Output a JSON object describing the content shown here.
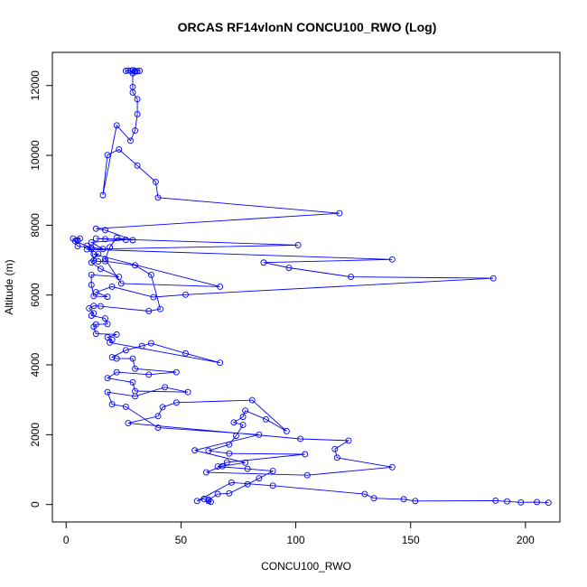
{
  "chart_data": {
    "type": "line",
    "title": "ORCAS RF14vlonN CONCU100_RWO (Log)",
    "xlabel": "CONCU100_RWO",
    "ylabel": "Altitude (m)",
    "xlim": [
      -6,
      215
    ],
    "ylim": [
      -500,
      12950
    ],
    "xticks": [
      0,
      50,
      100,
      150,
      200
    ],
    "yticks": [
      0,
      2000,
      4000,
      6000,
      8000,
      10000,
      12000
    ],
    "grid": false,
    "marker": "open-circle",
    "color": "#0000ff",
    "series": [
      {
        "name": "",
        "points": [
          [
            210,
            50
          ],
          [
            205,
            70
          ],
          [
            198,
            60
          ],
          [
            192,
            90
          ],
          [
            187,
            110
          ],
          [
            152,
            100
          ],
          [
            147,
            150
          ],
          [
            134,
            180
          ],
          [
            130,
            300
          ],
          [
            90,
            540
          ],
          [
            72,
            630
          ],
          [
            57,
            100
          ],
          [
            60,
            160
          ],
          [
            62,
            100
          ],
          [
            63,
            80
          ],
          [
            62,
            140
          ],
          [
            66,
            300
          ],
          [
            71,
            320
          ],
          [
            79,
            580
          ],
          [
            84,
            750
          ],
          [
            90,
            960
          ],
          [
            79,
            1020
          ],
          [
            66,
            1090
          ],
          [
            70,
            1210
          ],
          [
            104,
            1440
          ],
          [
            71,
            1460
          ],
          [
            62,
            1540
          ],
          [
            71,
            1720
          ],
          [
            74,
            1970
          ],
          [
            77,
            2280
          ],
          [
            73,
            2350
          ],
          [
            77,
            2510
          ],
          [
            78,
            2690
          ],
          [
            87,
            2440
          ],
          [
            96,
            2100
          ],
          [
            81,
            2990
          ],
          [
            48,
            2920
          ],
          [
            42,
            2790
          ],
          [
            40,
            2530
          ],
          [
            27,
            2330
          ],
          [
            102,
            1880
          ],
          [
            123,
            1830
          ],
          [
            117,
            1590
          ],
          [
            118,
            1340
          ],
          [
            142,
            1070
          ],
          [
            105,
            840
          ],
          [
            61,
            920
          ],
          [
            68,
            1100
          ],
          [
            78,
            1200
          ],
          [
            56,
            1550
          ],
          [
            84,
            2000
          ],
          [
            40,
            2200
          ],
          [
            26,
            2800
          ],
          [
            20,
            2870
          ],
          [
            18,
            3220
          ],
          [
            30,
            3100
          ],
          [
            43,
            3360
          ],
          [
            53,
            3220
          ],
          [
            30,
            3250
          ],
          [
            29,
            3500
          ],
          [
            18,
            3620
          ],
          [
            22,
            3790
          ],
          [
            36,
            3720
          ],
          [
            48,
            3790
          ],
          [
            30,
            3890
          ],
          [
            29,
            4180
          ],
          [
            22,
            4180
          ],
          [
            20,
            4220
          ],
          [
            26,
            4420
          ],
          [
            33,
            4540
          ],
          [
            37,
            4620
          ],
          [
            52,
            4330
          ],
          [
            67,
            4060
          ],
          [
            19,
            4640
          ],
          [
            20,
            4720
          ],
          [
            18,
            4790
          ],
          [
            22,
            4870
          ],
          [
            13,
            4890
          ],
          [
            12,
            5090
          ],
          [
            13,
            5160
          ],
          [
            18,
            5170
          ],
          [
            17,
            5330
          ],
          [
            11,
            5410
          ],
          [
            12,
            5480
          ],
          [
            10,
            5620
          ],
          [
            12,
            5690
          ],
          [
            15,
            5680
          ],
          [
            36,
            5540
          ],
          [
            41,
            5600
          ],
          [
            37,
            6580
          ],
          [
            30,
            6850
          ],
          [
            17,
            6970
          ],
          [
            14,
            6960
          ],
          [
            12,
            6990
          ],
          [
            11,
            7320
          ],
          [
            9,
            7410
          ],
          [
            4,
            7540
          ],
          [
            5,
            7570
          ],
          [
            6,
            7620
          ],
          [
            3,
            7620
          ],
          [
            5,
            7400
          ],
          [
            11,
            7360
          ],
          [
            16,
            7320
          ],
          [
            11,
            7510
          ],
          [
            26,
            7580
          ],
          [
            17,
            7600
          ],
          [
            13,
            7620
          ],
          [
            101,
            7430
          ],
          [
            9,
            7310
          ],
          [
            142,
            7020
          ],
          [
            86,
            6930
          ],
          [
            97,
            6780
          ],
          [
            124,
            6520
          ],
          [
            186,
            6480
          ],
          [
            52,
            6010
          ],
          [
            38,
            5940
          ],
          [
            20,
            6240
          ],
          [
            13,
            6080
          ],
          [
            18,
            5950
          ],
          [
            12,
            5970
          ],
          [
            11,
            6290
          ],
          [
            11,
            6580
          ],
          [
            23,
            6520
          ],
          [
            15,
            6750
          ],
          [
            11,
            6930
          ],
          [
            14,
            7180
          ],
          [
            12,
            7170
          ],
          [
            67,
            6240
          ],
          [
            24,
            6330
          ],
          [
            17,
            7030
          ],
          [
            19,
            7370
          ],
          [
            22,
            7640
          ],
          [
            29,
            7570
          ],
          [
            17,
            7860
          ],
          [
            13,
            7900
          ],
          [
            119,
            8340
          ],
          [
            40,
            8790
          ],
          [
            39,
            9240
          ],
          [
            31,
            9710
          ],
          [
            23,
            10170
          ],
          [
            18,
            10010
          ],
          [
            16,
            8860
          ],
          [
            22,
            10860
          ],
          [
            28,
            10420
          ],
          [
            30,
            10710
          ],
          [
            31,
            11180
          ],
          [
            31,
            11610
          ],
          [
            29,
            11800
          ],
          [
            29,
            11960
          ],
          [
            29,
            12350
          ],
          [
            28,
            12420
          ],
          [
            30,
            12400
          ],
          [
            27,
            12430
          ],
          [
            31,
            12410
          ],
          [
            26,
            12420
          ],
          [
            32,
            12420
          ],
          [
            29,
            12440
          ],
          [
            30,
            12420
          ]
        ]
      }
    ]
  }
}
